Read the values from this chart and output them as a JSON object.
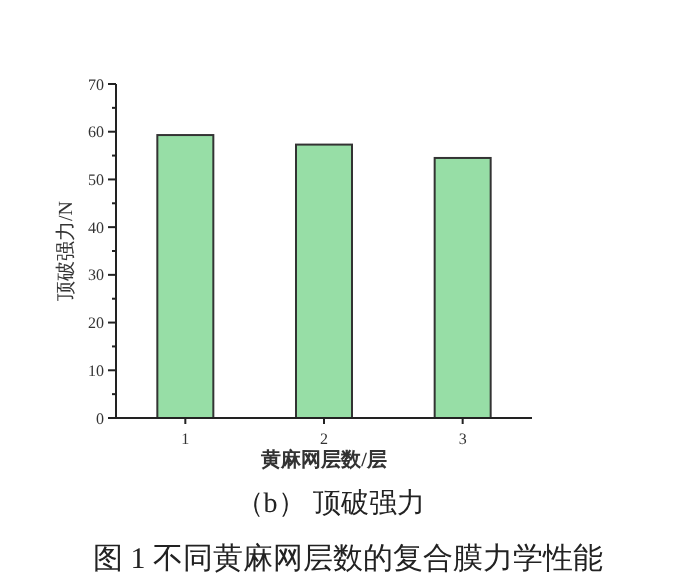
{
  "chart_data": {
    "type": "bar",
    "xlabel": "黄麻网层数/层",
    "ylabel": "顶破强力/N",
    "categories": [
      "1",
      "2",
      "3"
    ],
    "values": [
      59.3,
      57.3,
      54.5
    ],
    "color": "#97dea6",
    "ylim": [
      0,
      70
    ],
    "yticks": [
      0,
      {
        "value": 5,
        "label": null
      },
      10,
      {
        "value": 15,
        "label": null
      },
      20,
      {
        "value": 25,
        "label": null
      },
      30,
      {
        "value": 35,
        "label": null
      },
      40,
      {
        "value": 45,
        "label": null
      },
      50,
      {
        "value": 55,
        "label": null
      },
      60,
      {
        "value": 65,
        "label": null
      },
      70
    ],
    "grid": false,
    "annotations": [
      "（b） 顶破强力",
      "图 1 不同黄麻网层数的复合膜力学性能"
    ]
  }
}
